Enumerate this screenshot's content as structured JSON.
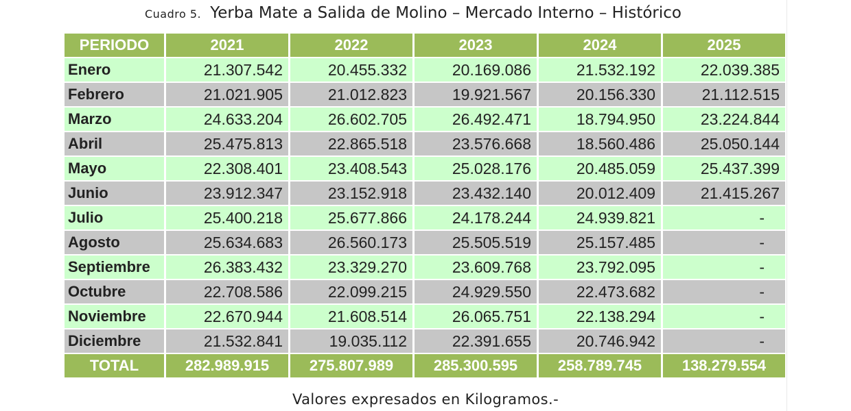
{
  "colors": {
    "header_bg": "#9bbb59",
    "header_text": "#ffffff",
    "row_light": "#ccffcc",
    "row_dark": "#c6c6c6",
    "text": "#222222"
  },
  "title": {
    "prefix": "Cuadro 5.",
    "main": "Yerba Mate a Salida de Molino  – Mercado Interno – Histórico"
  },
  "footer_note": "Valores expresados en Kilogramos.-",
  "chart_data": {
    "type": "table",
    "title": "Yerba Mate a Salida de Molino  – Mercado Interno – Histórico",
    "headers": [
      "PERIODO",
      "2021",
      "2022",
      "2023",
      "2024",
      "2025"
    ],
    "rows": [
      {
        "label": "Enero",
        "values": [
          "21.307.542",
          "20.455.332",
          "20.169.086",
          "21.532.192",
          "22.039.385"
        ]
      },
      {
        "label": "Febrero",
        "values": [
          "21.021.905",
          "21.012.823",
          "19.921.567",
          "20.156.330",
          "21.112.515"
        ]
      },
      {
        "label": "Marzo",
        "values": [
          "24.633.204",
          "26.602.705",
          "26.492.471",
          "18.794.950",
          "23.224.844"
        ]
      },
      {
        "label": "Abril",
        "values": [
          "25.475.813",
          "22.865.518",
          "23.576.668",
          "18.560.486",
          "25.050.144"
        ]
      },
      {
        "label": "Mayo",
        "values": [
          "22.308.401",
          "23.408.543",
          "25.028.176",
          "20.485.059",
          "25.437.399"
        ]
      },
      {
        "label": "Junio",
        "values": [
          "23.912.347",
          "23.152.918",
          "23.432.140",
          "20.012.409",
          "21.415.267"
        ]
      },
      {
        "label": "Julio",
        "values": [
          "25.400.218",
          "25.677.866",
          "24.178.244",
          "24.939.821",
          "-"
        ]
      },
      {
        "label": "Agosto",
        "values": [
          "25.634.683",
          "26.560.173",
          "25.505.519",
          "25.157.485",
          "-"
        ]
      },
      {
        "label": "Septiembre",
        "values": [
          "26.383.432",
          "23.329.270",
          "23.609.768",
          "23.792.095",
          "-"
        ]
      },
      {
        "label": "Octubre",
        "values": [
          "22.708.586",
          "22.099.215",
          "24.929.550",
          "22.473.682",
          "-"
        ]
      },
      {
        "label": "Noviembre",
        "values": [
          "22.670.944",
          "21.608.514",
          "26.065.751",
          "22.138.294",
          "-"
        ]
      },
      {
        "label": "Diciembre",
        "values": [
          "21.532.841",
          "19.035.112",
          "22.391.655",
          "20.746.942",
          "-"
        ]
      }
    ],
    "total": {
      "label": "TOTAL",
      "values": [
        "282.989.915",
        "275.807.989",
        "285.300.595",
        "258.789.745",
        "138.279.554"
      ]
    }
  }
}
